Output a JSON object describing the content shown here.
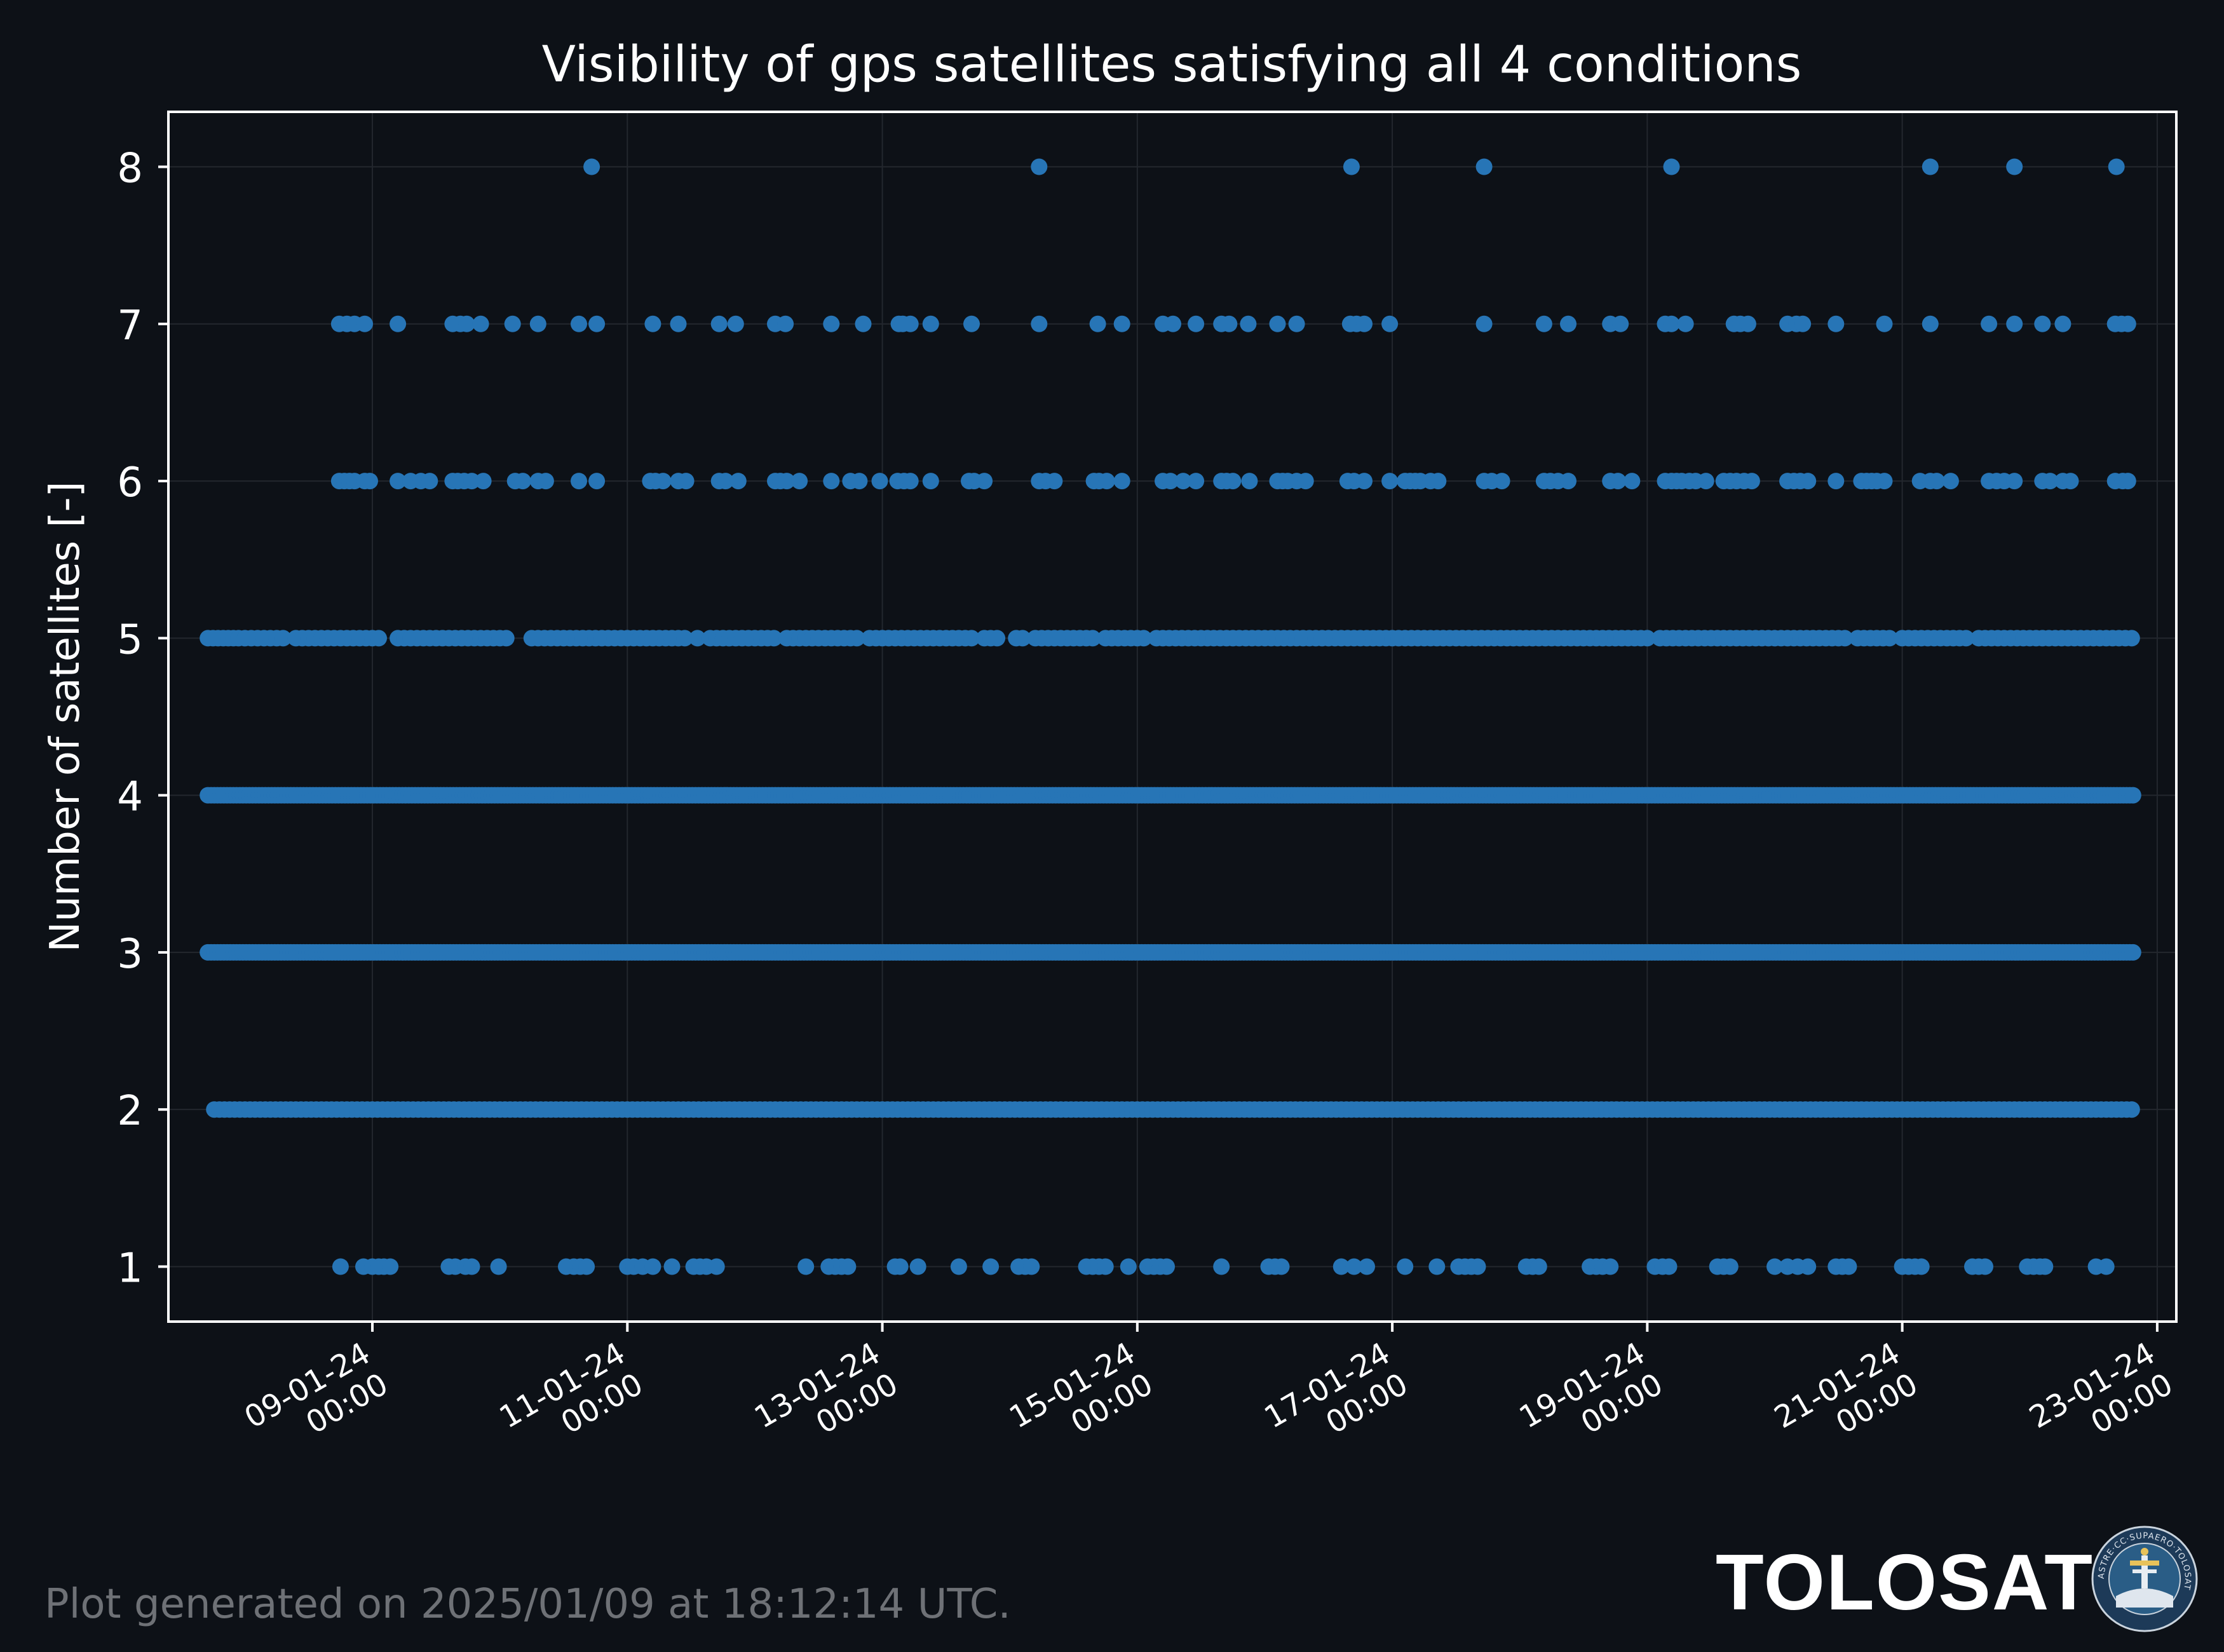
{
  "chart_data": {
    "type": "scatter",
    "title": "Visibility of gps satellites satisfying all 4 conditions",
    "xlabel": "",
    "ylabel": "Number of satellites [-]",
    "xlim_days": [
      7.4,
      23.15
    ],
    "ylim": [
      0.65,
      8.35
    ],
    "yticks": [
      1,
      2,
      3,
      4,
      5,
      6,
      7,
      8
    ],
    "xticks": [
      {
        "day": 9,
        "date": "09-01-24",
        "time": "00:00"
      },
      {
        "day": 11,
        "date": "11-01-24",
        "time": "00:00"
      },
      {
        "day": 13,
        "date": "13-01-24",
        "time": "00:00"
      },
      {
        "day": 15,
        "date": "15-01-24",
        "time": "00:00"
      },
      {
        "day": 17,
        "date": "17-01-24",
        "time": "00:00"
      },
      {
        "day": 19,
        "date": "19-01-24",
        "time": "00:00"
      },
      {
        "day": 21,
        "date": "21-01-24",
        "time": "00:00"
      },
      {
        "day": 23,
        "date": "23-01-24",
        "time": "00:00"
      }
    ],
    "grid": true,
    "marker_color": "#2775b6",
    "series": [
      {
        "y": 8,
        "x_days": [
          10.72,
          14.23,
          16.68,
          17.72,
          19.19,
          21.22,
          21.88,
          22.68
        ]
      },
      {
        "y": 7,
        "x_days": [
          8.74,
          8.8,
          8.86,
          8.94,
          9.2,
          9.63,
          9.69,
          9.74,
          9.85,
          10.1,
          10.3,
          10.62,
          10.76,
          11.2,
          11.4,
          11.72,
          11.85,
          12.16,
          12.24,
          12.6,
          12.85,
          13.13,
          13.16,
          13.22,
          13.38,
          13.7,
          14.23,
          14.69,
          14.88,
          15.2,
          15.28,
          15.46,
          15.66,
          15.72,
          15.87,
          16.1,
          16.25,
          16.67,
          16.72,
          16.78,
          16.98,
          17.72,
          18.19,
          18.38,
          18.71,
          18.79,
          19.14,
          19.19,
          19.3,
          19.68,
          19.73,
          19.79,
          20.1,
          20.17,
          20.22,
          20.48,
          20.86,
          21.22,
          21.68,
          21.88,
          22.1,
          22.26,
          22.67,
          22.72,
          22.77
        ]
      },
      {
        "y": 6,
        "x_days": [
          8.74,
          8.78,
          8.82,
          8.86,
          8.94,
          8.98,
          9.2,
          9.3,
          9.38,
          9.45,
          9.63,
          9.67,
          9.72,
          9.78,
          9.87,
          10.12,
          10.18,
          10.3,
          10.36,
          10.62,
          10.76,
          11.18,
          11.22,
          11.28,
          11.4,
          11.46,
          11.72,
          11.77,
          11.87,
          12.16,
          12.2,
          12.25,
          12.35,
          12.6,
          12.75,
          12.82,
          12.98,
          13.12,
          13.17,
          13.22,
          13.38,
          13.68,
          13.72,
          13.8,
          14.23,
          14.28,
          14.35,
          14.66,
          14.7,
          14.76,
          14.88,
          15.2,
          15.26,
          15.36,
          15.46,
          15.66,
          15.7,
          15.75,
          15.88,
          16.1,
          16.14,
          16.18,
          16.25,
          16.32,
          16.65,
          16.7,
          16.78,
          16.98,
          17.1,
          17.14,
          17.18,
          17.22,
          17.3,
          17.36,
          17.72,
          17.78,
          17.86,
          18.19,
          18.24,
          18.3,
          18.38,
          18.71,
          18.77,
          18.88,
          19.14,
          19.19,
          19.23,
          19.27,
          19.33,
          19.38,
          19.46,
          19.6,
          19.65,
          19.7,
          19.76,
          19.82,
          20.1,
          20.15,
          20.2,
          20.26,
          20.48,
          20.68,
          20.72,
          20.76,
          20.8,
          20.86,
          21.14,
          21.22,
          21.27,
          21.38,
          21.68,
          21.74,
          21.8,
          21.88,
          22.1,
          22.16,
          22.26,
          22.32,
          22.67,
          22.73,
          22.77
        ]
      },
      {
        "y": 5,
        "x_days": [
          7.71,
          7.75,
          7.79,
          7.83,
          7.87,
          7.91,
          7.95,
          8.0,
          8.05,
          8.1,
          8.15,
          8.2,
          8.25,
          8.3,
          8.4,
          8.45,
          8.5,
          8.55,
          8.6,
          8.65,
          8.7,
          8.75,
          8.8,
          8.85,
          8.9,
          8.95,
          9.0,
          9.05,
          9.2,
          9.25,
          9.3,
          9.35,
          9.4,
          9.45,
          9.5,
          9.55,
          9.6,
          9.65,
          9.7,
          9.75,
          9.8,
          9.85,
          9.9,
          9.95,
          10.0,
          10.05,
          10.25,
          10.3,
          10.35,
          10.4,
          10.45,
          10.5,
          10.55,
          10.6,
          10.65,
          10.7,
          10.75,
          10.8,
          10.85,
          10.9,
          10.95,
          11.0,
          11.05,
          11.1,
          11.15,
          11.2,
          11.25,
          11.3,
          11.35,
          11.4,
          11.45,
          11.55,
          11.65,
          11.7,
          11.75,
          11.8,
          11.85,
          11.9,
          11.95,
          12.0,
          12.05,
          12.1,
          12.15,
          12.25,
          12.3,
          12.35,
          12.4,
          12.45,
          12.5,
          12.55,
          12.6,
          12.65,
          12.7,
          12.75,
          12.8,
          12.9,
          12.95,
          13.0,
          13.05,
          13.1,
          13.15,
          13.2,
          13.25,
          13.3,
          13.35,
          13.4,
          13.45,
          13.5,
          13.55,
          13.6,
          13.65,
          13.7,
          13.8,
          13.85,
          13.9,
          14.05,
          14.1,
          14.2,
          14.25,
          14.3,
          14.35,
          14.4,
          14.45,
          14.5,
          14.55,
          14.6,
          14.65,
          14.75,
          14.8,
          14.85,
          14.9,
          14.95,
          15.0,
          15.05,
          15.15,
          15.2,
          15.25,
          15.3,
          15.35,
          15.4,
          15.45,
          15.5,
          15.55,
          15.6,
          15.65,
          15.7,
          15.75,
          15.8,
          15.85,
          15.9,
          15.95,
          16.0,
          16.05,
          16.1,
          16.15,
          16.2,
          16.25,
          16.3,
          16.35,
          16.4,
          16.45,
          16.5,
          16.55,
          16.6,
          16.65,
          16.7,
          16.75,
          16.8,
          16.85,
          16.9,
          16.95,
          17.0,
          17.05,
          17.1,
          17.15,
          17.2,
          17.25,
          17.3,
          17.35,
          17.4,
          17.45,
          17.5,
          17.55,
          17.6,
          17.65,
          17.7,
          17.75,
          17.8,
          17.85,
          17.9,
          17.95,
          18.0,
          18.05,
          18.1,
          18.15,
          18.2,
          18.25,
          18.3,
          18.35,
          18.4,
          18.45,
          18.5,
          18.55,
          18.6,
          18.65,
          18.7,
          18.75,
          18.8,
          18.85,
          18.9,
          18.95,
          19.0,
          19.1,
          19.15,
          19.2,
          19.25,
          19.3,
          19.35,
          19.4,
          19.45,
          19.5,
          19.55,
          19.6,
          19.65,
          19.7,
          19.75,
          19.8,
          19.85,
          19.9,
          19.95,
          20.0,
          20.05,
          20.1,
          20.15,
          20.2,
          20.25,
          20.3,
          20.35,
          20.4,
          20.45,
          20.5,
          20.55,
          20.65,
          20.7,
          20.75,
          20.8,
          20.85,
          20.9,
          21.0,
          21.05,
          21.1,
          21.15,
          21.2,
          21.25,
          21.3,
          21.35,
          21.4,
          21.45,
          21.5,
          21.6,
          21.65,
          21.7,
          21.75,
          21.8,
          21.85,
          21.9,
          21.95,
          22.0,
          22.05,
          22.1,
          22.15,
          22.2,
          22.25,
          22.3,
          22.35,
          22.4,
          22.45,
          22.5,
          22.55,
          22.6,
          22.65,
          22.7,
          22.75,
          22.8
        ]
      },
      {
        "y": 4,
        "x_start": 7.71,
        "x_end": 22.82,
        "step": 0.025
      },
      {
        "y": 3,
        "x_start": 7.71,
        "x_end": 22.82,
        "step": 0.025
      },
      {
        "y": 2,
        "x_days": [
          7.76,
          7.8,
          7.84,
          7.88,
          7.92,
          7.96,
          8.0,
          8.04,
          8.08,
          8.12,
          8.16,
          8.2,
          8.24,
          8.28,
          8.32,
          8.36,
          8.4,
          8.44,
          8.48,
          8.52,
          8.56,
          8.6,
          8.64,
          8.68,
          8.72,
          8.76,
          8.8,
          8.84,
          8.88,
          8.92,
          8.96,
          9.0,
          9.04,
          9.08,
          9.12,
          9.16,
          9.2,
          9.24,
          9.28,
          9.32,
          9.36,
          9.4,
          9.44,
          9.48,
          9.52,
          9.56,
          9.6,
          9.64,
          9.68,
          9.72,
          9.76,
          9.8,
          9.84,
          9.88,
          9.92,
          9.96,
          10.0,
          10.04,
          10.08,
          10.12,
          10.16,
          10.2,
          10.24,
          10.28,
          10.32,
          10.36,
          10.4,
          10.44,
          10.48,
          10.52,
          10.56,
          10.6,
          10.64,
          10.68,
          10.72,
          10.76,
          10.8,
          10.84,
          10.88,
          10.92,
          10.96,
          11.0,
          11.04,
          11.08,
          11.12,
          11.16,
          11.2,
          11.24,
          11.28,
          11.32,
          11.36,
          11.4,
          11.44,
          11.48,
          11.52,
          11.56,
          11.6,
          11.64,
          11.68,
          11.72,
          11.76,
          11.8,
          11.84,
          11.88,
          11.92,
          11.96,
          12.0,
          12.04,
          12.08,
          12.12,
          12.16,
          12.2,
          12.24,
          12.28,
          12.32,
          12.36,
          12.4,
          12.44,
          12.48,
          12.52,
          12.56,
          12.6,
          12.64,
          12.68,
          12.72,
          12.76,
          12.8,
          12.84,
          12.88,
          12.92,
          12.96,
          13.0,
          13.04,
          13.08,
          13.12,
          13.16,
          13.2,
          13.24,
          13.28,
          13.32,
          13.36,
          13.4,
          13.44,
          13.48,
          13.52,
          13.56,
          13.6,
          13.64,
          13.68,
          13.72,
          13.76,
          13.8,
          13.84,
          13.88,
          13.92,
          13.96,
          14.0,
          14.04,
          14.08,
          14.12,
          14.16,
          14.2,
          14.24,
          14.28,
          14.32,
          14.36,
          14.4,
          14.44,
          14.48,
          14.52,
          14.56,
          14.6,
          14.64,
          14.68,
          14.72,
          14.76,
          14.8,
          14.84,
          14.88,
          14.92,
          14.96,
          15.0,
          15.04,
          15.08,
          15.12,
          15.16,
          15.2,
          15.24,
          15.28,
          15.32,
          15.36,
          15.4,
          15.44,
          15.48,
          15.52,
          15.56,
          15.6,
          15.64,
          15.68,
          15.72,
          15.76,
          15.8,
          15.84,
          15.88,
          15.92,
          15.96,
          16.0,
          16.04,
          16.08,
          16.12,
          16.16,
          16.2,
          16.24,
          16.28,
          16.32,
          16.36,
          16.4,
          16.44,
          16.48,
          16.52,
          16.56,
          16.6,
          16.64,
          16.68,
          16.72,
          16.76,
          16.8,
          16.84,
          16.88,
          16.92,
          16.96,
          17.0,
          17.04,
          17.08,
          17.12,
          17.16,
          17.2,
          17.24,
          17.28,
          17.32,
          17.36,
          17.4,
          17.44,
          17.48,
          17.52,
          17.56,
          17.6,
          17.64,
          17.68,
          17.72,
          17.76,
          17.8,
          17.84,
          17.88,
          17.92,
          17.96,
          18.0,
          18.04,
          18.08,
          18.12,
          18.16,
          18.2,
          18.24,
          18.28,
          18.32,
          18.36,
          18.4,
          18.44,
          18.48,
          18.52,
          18.56,
          18.6,
          18.64,
          18.68,
          18.72,
          18.76,
          18.8,
          18.84,
          18.88,
          18.92,
          18.96,
          19.0,
          19.04,
          19.08,
          19.12,
          19.16,
          19.2,
          19.24,
          19.28,
          19.32,
          19.36,
          19.4,
          19.44,
          19.48,
          19.52,
          19.56,
          19.6,
          19.64,
          19.68,
          19.72,
          19.76,
          19.8,
          19.84,
          19.88,
          19.92,
          19.96,
          20.0,
          20.04,
          20.08,
          20.12,
          20.16,
          20.2,
          20.24,
          20.28,
          20.32,
          20.36,
          20.4,
          20.44,
          20.48,
          20.52,
          20.56,
          20.6,
          20.64,
          20.68,
          20.72,
          20.76,
          20.8,
          20.84,
          20.88,
          20.92,
          20.96,
          21.0,
          21.04,
          21.08,
          21.12,
          21.16,
          21.2,
          21.24,
          21.28,
          21.32,
          21.36,
          21.4,
          21.44,
          21.48,
          21.52,
          21.56,
          21.6,
          21.64,
          21.68,
          21.72,
          21.76,
          21.8,
          21.84,
          21.88,
          21.92,
          21.96,
          22.0,
          22.04,
          22.08,
          22.12,
          22.16,
          22.2,
          22.24,
          22.28,
          22.32,
          22.36,
          22.4,
          22.44,
          22.48,
          22.52,
          22.56,
          22.6,
          22.64,
          22.68,
          22.72,
          22.76,
          22.8
        ]
      },
      {
        "y": 1,
        "x_days": [
          8.75,
          8.93,
          9.0,
          9.05,
          9.09,
          9.14,
          9.6,
          9.65,
          9.73,
          9.78,
          9.99,
          10.52,
          10.58,
          10.63,
          10.68,
          11.0,
          11.05,
          11.12,
          11.2,
          11.35,
          11.52,
          11.57,
          11.62,
          11.7,
          12.4,
          12.58,
          12.63,
          12.68,
          12.73,
          13.1,
          13.14,
          13.28,
          13.6,
          13.85,
          14.07,
          14.12,
          14.17,
          14.6,
          14.65,
          14.7,
          14.75,
          14.93,
          15.08,
          15.13,
          15.18,
          15.23,
          15.66,
          16.03,
          16.08,
          16.13,
          16.6,
          16.7,
          16.8,
          17.1,
          17.35,
          17.52,
          17.57,
          17.62,
          17.67,
          18.05,
          18.1,
          18.15,
          18.55,
          18.6,
          18.65,
          18.71,
          19.06,
          19.12,
          19.17,
          19.55,
          19.6,
          19.65,
          20.0,
          20.1,
          20.18,
          20.26,
          20.48,
          20.53,
          20.58,
          21.0,
          21.05,
          21.1,
          21.15,
          21.55,
          21.6,
          21.65,
          21.98,
          22.03,
          22.08,
          22.12,
          22.52,
          22.6
        ]
      }
    ]
  },
  "footer": {
    "generated_text": "Plot generated on 2025/01/09 at 18:12:14 UTC.",
    "brand_name": "TOLOSAT",
    "logo_ring_text": "ASTRE·CC·SUPAERO·TOLOSAT"
  },
  "colors": {
    "background": "#0d1117",
    "axes_edge": "#ffffff",
    "grid": "#23272e",
    "text": "#ffffff",
    "footer_text": "#6e7176",
    "markers": "#2775b6"
  }
}
